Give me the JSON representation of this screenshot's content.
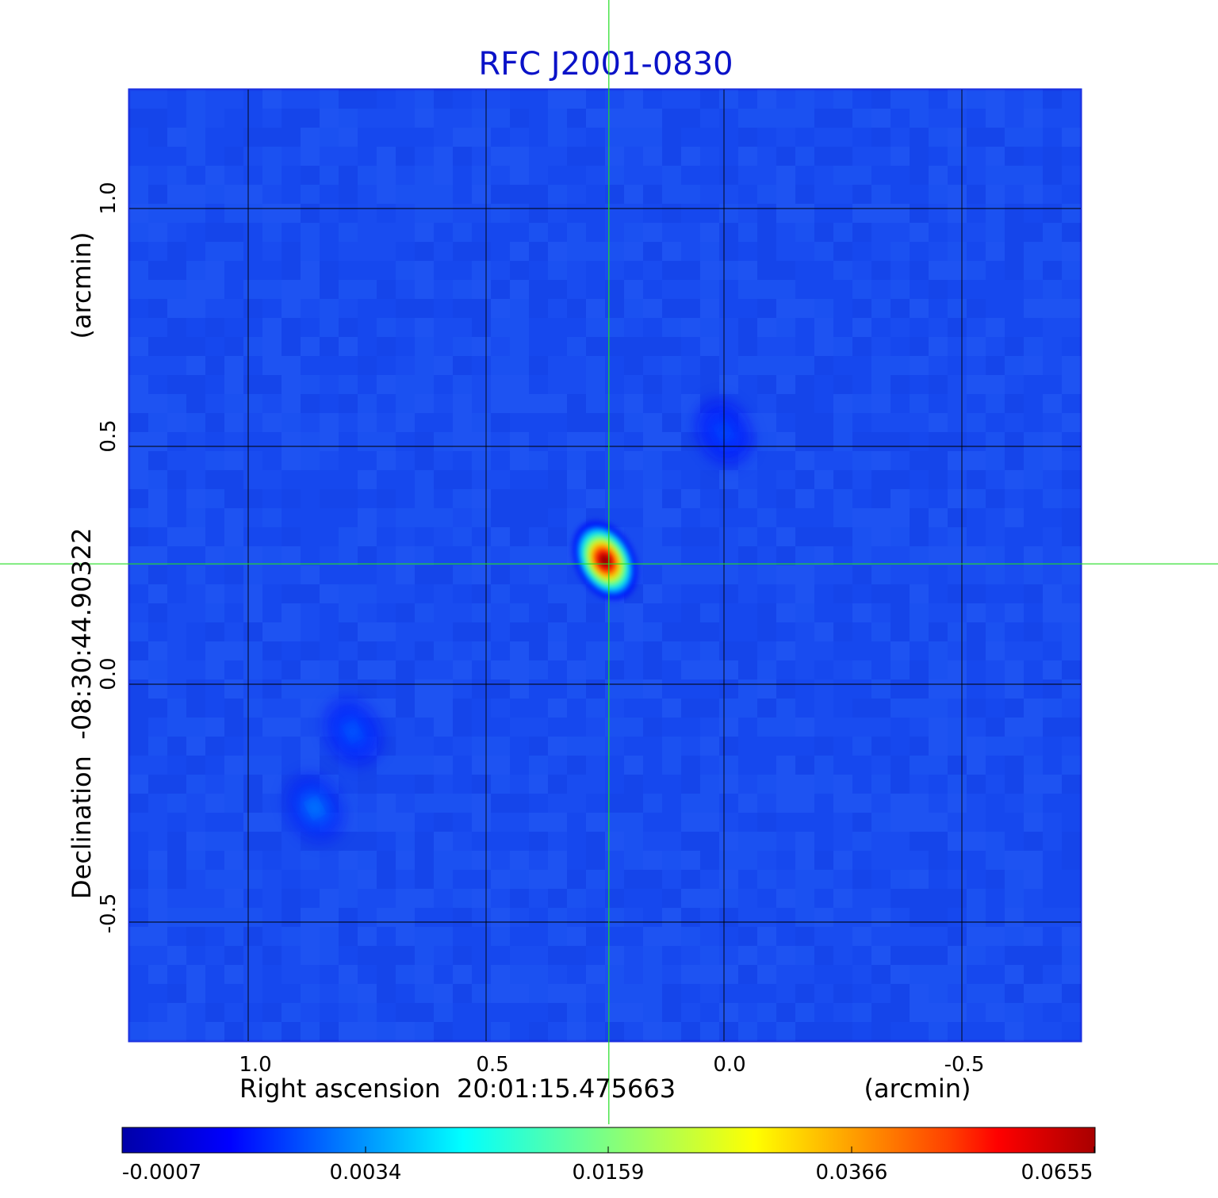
{
  "chart_data": {
    "type": "heatmap",
    "title": "RFC J2001-0830",
    "xlabel": "Right ascension  20:01:15.475663",
    "xunit": "(arcmin)",
    "ylabel": "Declination  -08:30:44.90322",
    "yunit": "(arcmin)",
    "xlim": [
      1.25,
      -0.75
    ],
    "ylim": [
      -0.75,
      1.25
    ],
    "x_ticks": [
      1.0,
      0.5,
      0.0,
      -0.5
    ],
    "x_tick_labels": [
      "1.0",
      "0.5",
      "0.0",
      "-0.5"
    ],
    "y_ticks": [
      1.0,
      0.5,
      0.0,
      -0.5
    ],
    "y_tick_labels": [
      "1.0",
      "0.5",
      "0.0",
      "-0.5"
    ],
    "grid": true,
    "crosshair": {
      "x": 0.242,
      "y": 0.253
    },
    "colormap": "jet",
    "colorbar": {
      "orientation": "horizontal",
      "tick_labels": [
        "-0.0007",
        "0.0034",
        "0.0159",
        "0.0366",
        "0.0655"
      ],
      "vmin": -0.0007,
      "vmax": 0.0655
    },
    "sources": [
      {
        "x": 0.25,
        "y": 0.26,
        "peak": 0.0655
      },
      {
        "x": 0.86,
        "y": -0.26,
        "peak": 0.006
      },
      {
        "x": 0.78,
        "y": -0.1,
        "peak": 0.0035
      },
      {
        "x": 0.0,
        "y": 0.53,
        "peak": 0.003
      }
    ],
    "colors": {
      "title": "#0a12c8",
      "background": "#1a4df0",
      "grid": "#000000",
      "crosshair": "#22dd22"
    }
  }
}
